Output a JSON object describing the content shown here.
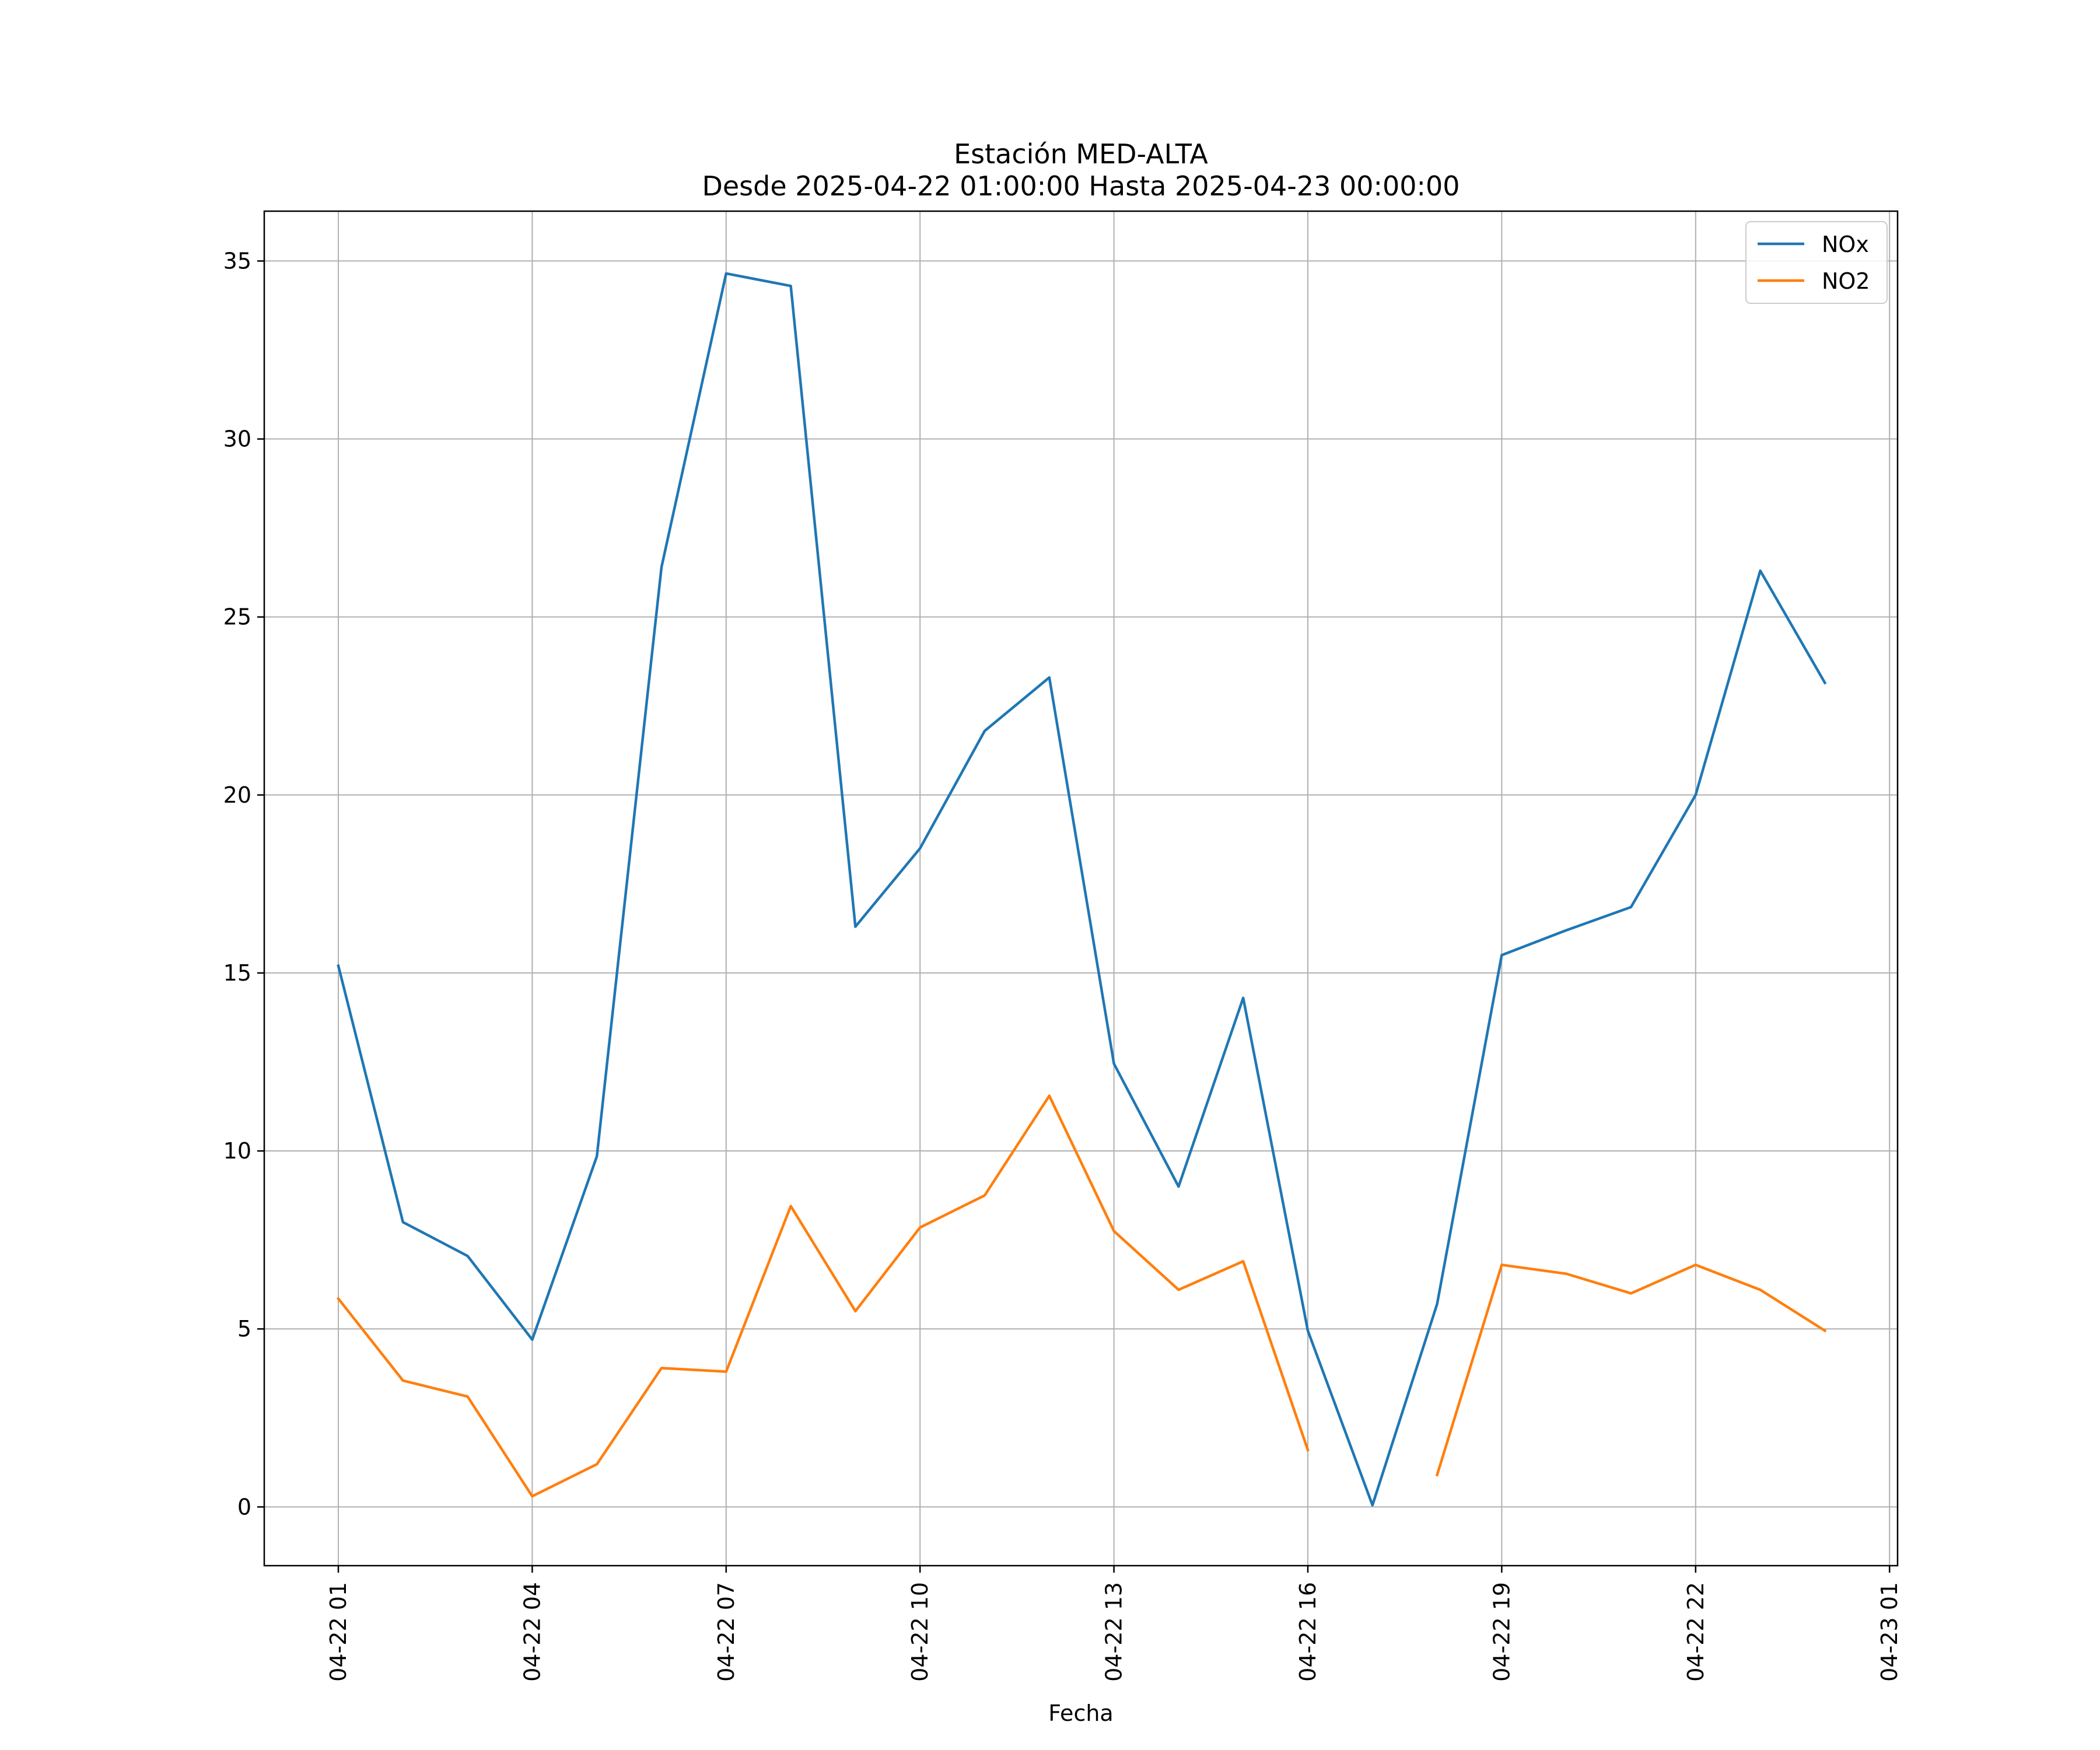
{
  "chart_data": {
    "type": "line",
    "title": "Estación MED-ALTA",
    "subtitle": "Desde 2025-04-22 01:00:00 Hasta 2025-04-23 00:00:00",
    "xlabel": "Fecha",
    "ylabel": "",
    "x": [
      "2025-04-22 01:00",
      "2025-04-22 02:00",
      "2025-04-22 03:00",
      "2025-04-22 04:00",
      "2025-04-22 05:00",
      "2025-04-22 06:00",
      "2025-04-22 07:00",
      "2025-04-22 08:00",
      "2025-04-22 09:00",
      "2025-04-22 10:00",
      "2025-04-22 11:00",
      "2025-04-22 12:00",
      "2025-04-22 13:00",
      "2025-04-22 14:00",
      "2025-04-22 15:00",
      "2025-04-22 16:00",
      "2025-04-22 17:00",
      "2025-04-22 18:00",
      "2025-04-22 19:00",
      "2025-04-22 20:00",
      "2025-04-22 21:00",
      "2025-04-22 22:00",
      "2025-04-22 23:00",
      "2025-04-23 00:00"
    ],
    "series": [
      {
        "name": "NOx",
        "color": "#1f77b4",
        "values": [
          15.2,
          8.0,
          7.05,
          4.7,
          9.85,
          26.4,
          34.65,
          34.3,
          16.3,
          18.5,
          21.8,
          23.3,
          12.45,
          9.0,
          14.3,
          4.95,
          0.05,
          5.7,
          15.5,
          16.2,
          16.85,
          20.0,
          26.3,
          23.15
        ]
      },
      {
        "name": "NO2",
        "color": "#ff7f0e",
        "values": [
          5.85,
          3.55,
          3.1,
          0.3,
          1.2,
          3.9,
          3.8,
          8.45,
          5.5,
          7.85,
          8.75,
          11.55,
          7.75,
          6.1,
          6.9,
          1.6,
          null,
          0.9,
          6.8,
          6.55,
          6.0,
          6.8,
          6.1,
          4.95
        ]
      }
    ],
    "ylim": [
      -1.65,
      36.4
    ],
    "yticks": [
      "0",
      "5",
      "10",
      "15",
      "20",
      "25",
      "30",
      "35"
    ],
    "xticks": [
      "04-22 01",
      "04-22 04",
      "04-22 07",
      "04-22 10",
      "04-22 13",
      "04-22 16",
      "04-22 19",
      "04-22 22",
      "04-23 01"
    ],
    "grid": true,
    "legend_position": "top-right"
  }
}
